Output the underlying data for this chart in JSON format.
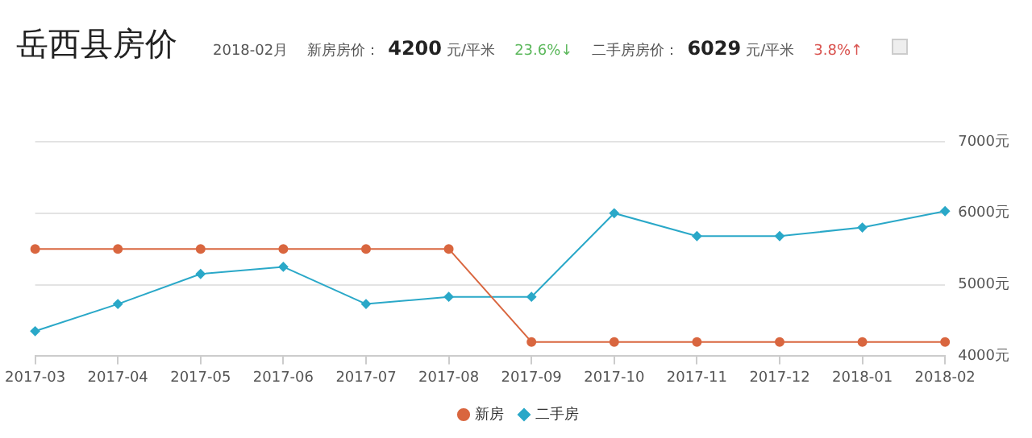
{
  "chart_data": {
    "type": "line",
    "title": "岳西县房价",
    "annotations": [
      "2018-02月",
      "新房房价：",
      "4200",
      "元/平米",
      "23.6%↓",
      "二手房房价：",
      "6029",
      "元/平米",
      "3.8%↑"
    ],
    "categories": [
      "2017-03",
      "2017-04",
      "2017-05",
      "2017-06",
      "2017-07",
      "2017-08",
      "2017-09",
      "2017-10",
      "2017-11",
      "2017-12",
      "2018-01",
      "2018-02"
    ],
    "series": [
      {
        "name": "新房",
        "color": "#d9663f",
        "marker": "circle",
        "values": [
          5500,
          5500,
          5500,
          5500,
          5500,
          5500,
          4200,
          4200,
          4200,
          4200,
          4200,
          4200
        ]
      },
      {
        "name": "二手房",
        "color": "#2aa8c8",
        "marker": "diamond",
        "values": [
          4350,
          4730,
          5150,
          5250,
          4730,
          4830,
          4830,
          6000,
          5680,
          5680,
          5800,
          6029
        ]
      }
    ],
    "ylim": [
      4000,
      7000
    ],
    "yticks": [
      {
        "value": 4000,
        "label": "4000元"
      },
      {
        "value": 5000,
        "label": "5000元"
      },
      {
        "value": 6000,
        "label": "6000元"
      },
      {
        "value": 7000,
        "label": "7000元"
      }
    ],
    "grid": "y",
    "legend": "bottom"
  }
}
